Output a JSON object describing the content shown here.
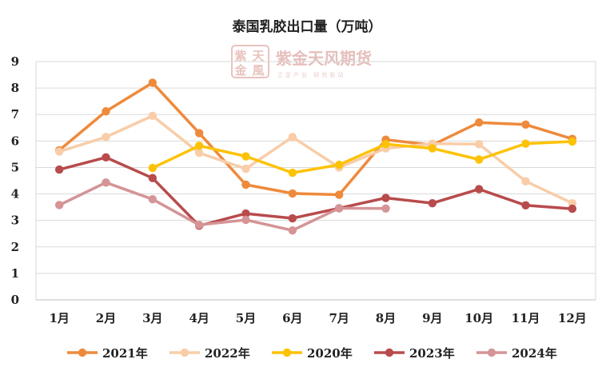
{
  "chart_data": {
    "type": "line",
    "title": "泰国乳胶出口量（万吨）",
    "categories": [
      "1月",
      "2月",
      "3月",
      "4月",
      "5月",
      "6月",
      "7月",
      "8月",
      "9月",
      "10月",
      "11月",
      "12月"
    ],
    "y_ticks": [
      "0",
      "1",
      "2",
      "3",
      "4",
      "5",
      "6",
      "7",
      "8",
      "9"
    ],
    "ylim": [
      0,
      9
    ],
    "grid": true,
    "legend_position": "bottom",
    "series": [
      {
        "name": "2021年",
        "color": "#ee8a3c",
        "values": [
          5.65,
          7.12,
          8.2,
          6.3,
          4.35,
          4.02,
          3.97,
          6.05,
          5.85,
          6.7,
          6.62,
          6.08
        ]
      },
      {
        "name": "2022年",
        "color": "#f8cda8",
        "values": [
          5.6,
          6.15,
          6.95,
          5.55,
          4.95,
          6.15,
          5.0,
          5.72,
          5.9,
          5.88,
          4.48,
          3.65
        ]
      },
      {
        "name": "2020年",
        "color": "#fdc206",
        "values": [
          null,
          null,
          4.98,
          5.82,
          5.42,
          4.8,
          5.1,
          5.88,
          5.72,
          5.3,
          5.9,
          5.98
        ]
      },
      {
        "name": "2023年",
        "color": "#b84b4c",
        "values": [
          4.92,
          5.38,
          4.6,
          2.8,
          3.26,
          3.08,
          3.46,
          3.85,
          3.65,
          4.18,
          3.57,
          3.44
        ]
      },
      {
        "name": "2024年",
        "color": "#d59496",
        "values": [
          3.58,
          4.43,
          3.8,
          2.83,
          3.02,
          2.62,
          3.46,
          3.45,
          null,
          null,
          null,
          null
        ]
      }
    ]
  },
  "watermark": {
    "logo_text": "紫金天风期货",
    "slogan": "立足产业 研究驱动",
    "seal_chars": [
      "紫",
      "天",
      "金",
      "風"
    ]
  }
}
